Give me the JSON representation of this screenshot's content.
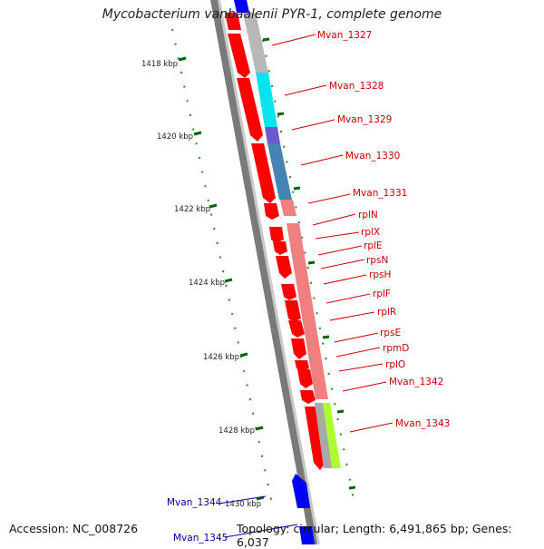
{
  "title": "Mycobacterium vanbaalenii PYR-1, complete genome",
  "footer": {
    "accession": "Accession: NC_008726",
    "topology": "Topology: circular; Length: 6,491,865 bp; Genes: 6,037"
  },
  "colors": {
    "forward_gene": "#ff0000",
    "reverse_gene": "#0000ff",
    "backbone": "#808080",
    "tick": "#006400",
    "label_red": "#cc0000",
    "label_blue": "#000099"
  },
  "ticks": [
    "1418 kbp",
    "1420 kbp",
    "1422 kbp",
    "1424 kbp",
    "1426 kbp",
    "1428 kbp",
    "1430 kbp"
  ],
  "gene_labels": [
    {
      "name": "Mvan_1327",
      "strand": "+"
    },
    {
      "name": "Mvan_1328",
      "strand": "+"
    },
    {
      "name": "Mvan_1329",
      "strand": "+"
    },
    {
      "name": "Mvan_1330",
      "strand": "+"
    },
    {
      "name": "Mvan_1331",
      "strand": "+"
    },
    {
      "name": "rplN",
      "strand": "+"
    },
    {
      "name": "rplX",
      "strand": "+"
    },
    {
      "name": "rplE",
      "strand": "+"
    },
    {
      "name": "rpsN",
      "strand": "+"
    },
    {
      "name": "rpsH",
      "strand": "+"
    },
    {
      "name": "rplF",
      "strand": "+"
    },
    {
      "name": "rplR",
      "strand": "+"
    },
    {
      "name": "rpsE",
      "strand": "+"
    },
    {
      "name": "rpmD",
      "strand": "+"
    },
    {
      "name": "rplO",
      "strand": "+"
    },
    {
      "name": "Mvan_1342",
      "strand": "+"
    },
    {
      "name": "Mvan_1343",
      "strand": "+"
    },
    {
      "name": "Mvan_1344",
      "strand": "-"
    },
    {
      "name": "Mvan_1345",
      "strand": "-"
    }
  ]
}
